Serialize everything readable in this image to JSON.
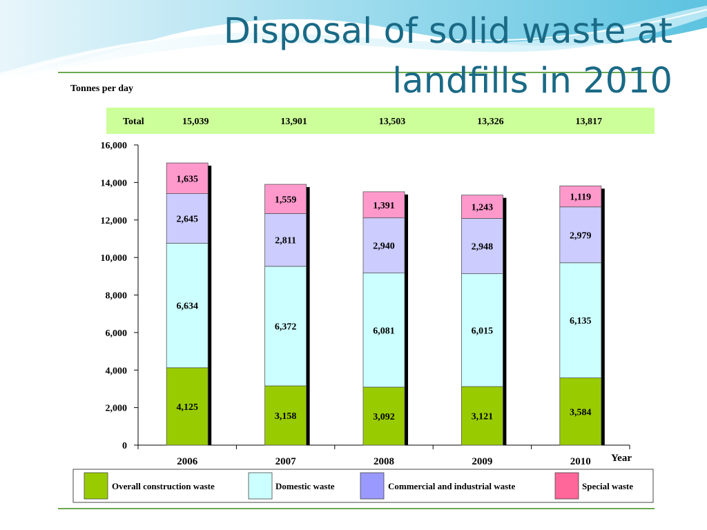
{
  "slide": {
    "title_line1": "Disposal of solid waste at",
    "title_line2": "landfills in 2010"
  },
  "chart_data": {
    "type": "bar",
    "stacked": true,
    "ylabel": "Tonnes per day",
    "xlabel": "Year",
    "ylim": [
      0,
      16000
    ],
    "yticks": [
      "0",
      "2,000",
      "4,000",
      "6,000",
      "8,000",
      "10,000",
      "12,000",
      "14,000",
      "16,000"
    ],
    "yticks_values": [
      0,
      2000,
      4000,
      6000,
      8000,
      10000,
      12000,
      14000,
      16000
    ],
    "categories": [
      "2006",
      "2007",
      "2008",
      "2009",
      "2010"
    ],
    "total_label": "Total",
    "totals": [
      "15,039",
      "13,901",
      "13,503",
      "13,326",
      "13,817"
    ],
    "series": [
      {
        "name": "Overall construction waste",
        "color": "#99cc00",
        "values": [
          4125,
          3158,
          3092,
          3121,
          3584
        ],
        "labels": [
          "4,125",
          "3,158",
          "3,092",
          "3,121",
          "3,584"
        ]
      },
      {
        "name": "Domestic waste",
        "color": "#ccffff",
        "values": [
          6634,
          6372,
          6081,
          6015,
          6135
        ],
        "labels": [
          "6,634",
          "6,372",
          "6,081",
          "6,015",
          "6,135"
        ]
      },
      {
        "name": "Commercial and industrial waste",
        "color": "#ccccff",
        "values": [
          2645,
          2811,
          2940,
          2948,
          2979
        ],
        "labels": [
          "2,645",
          "2,811",
          "2,940",
          "2,948",
          "2,979"
        ]
      },
      {
        "name": "Special waste",
        "color": "#ff99cc",
        "values": [
          1635,
          1559,
          1391,
          1243,
          1119
        ],
        "labels": [
          "1,635",
          "1,559",
          "1,391",
          "1,243",
          "1,119"
        ]
      }
    ],
    "legend_colors": [
      "#99cc00",
      "#ccffff",
      "#9999ff",
      "#ff6699"
    ],
    "totals_band_color": "#ccff99",
    "grid": false,
    "legend_position": "bottom"
  }
}
